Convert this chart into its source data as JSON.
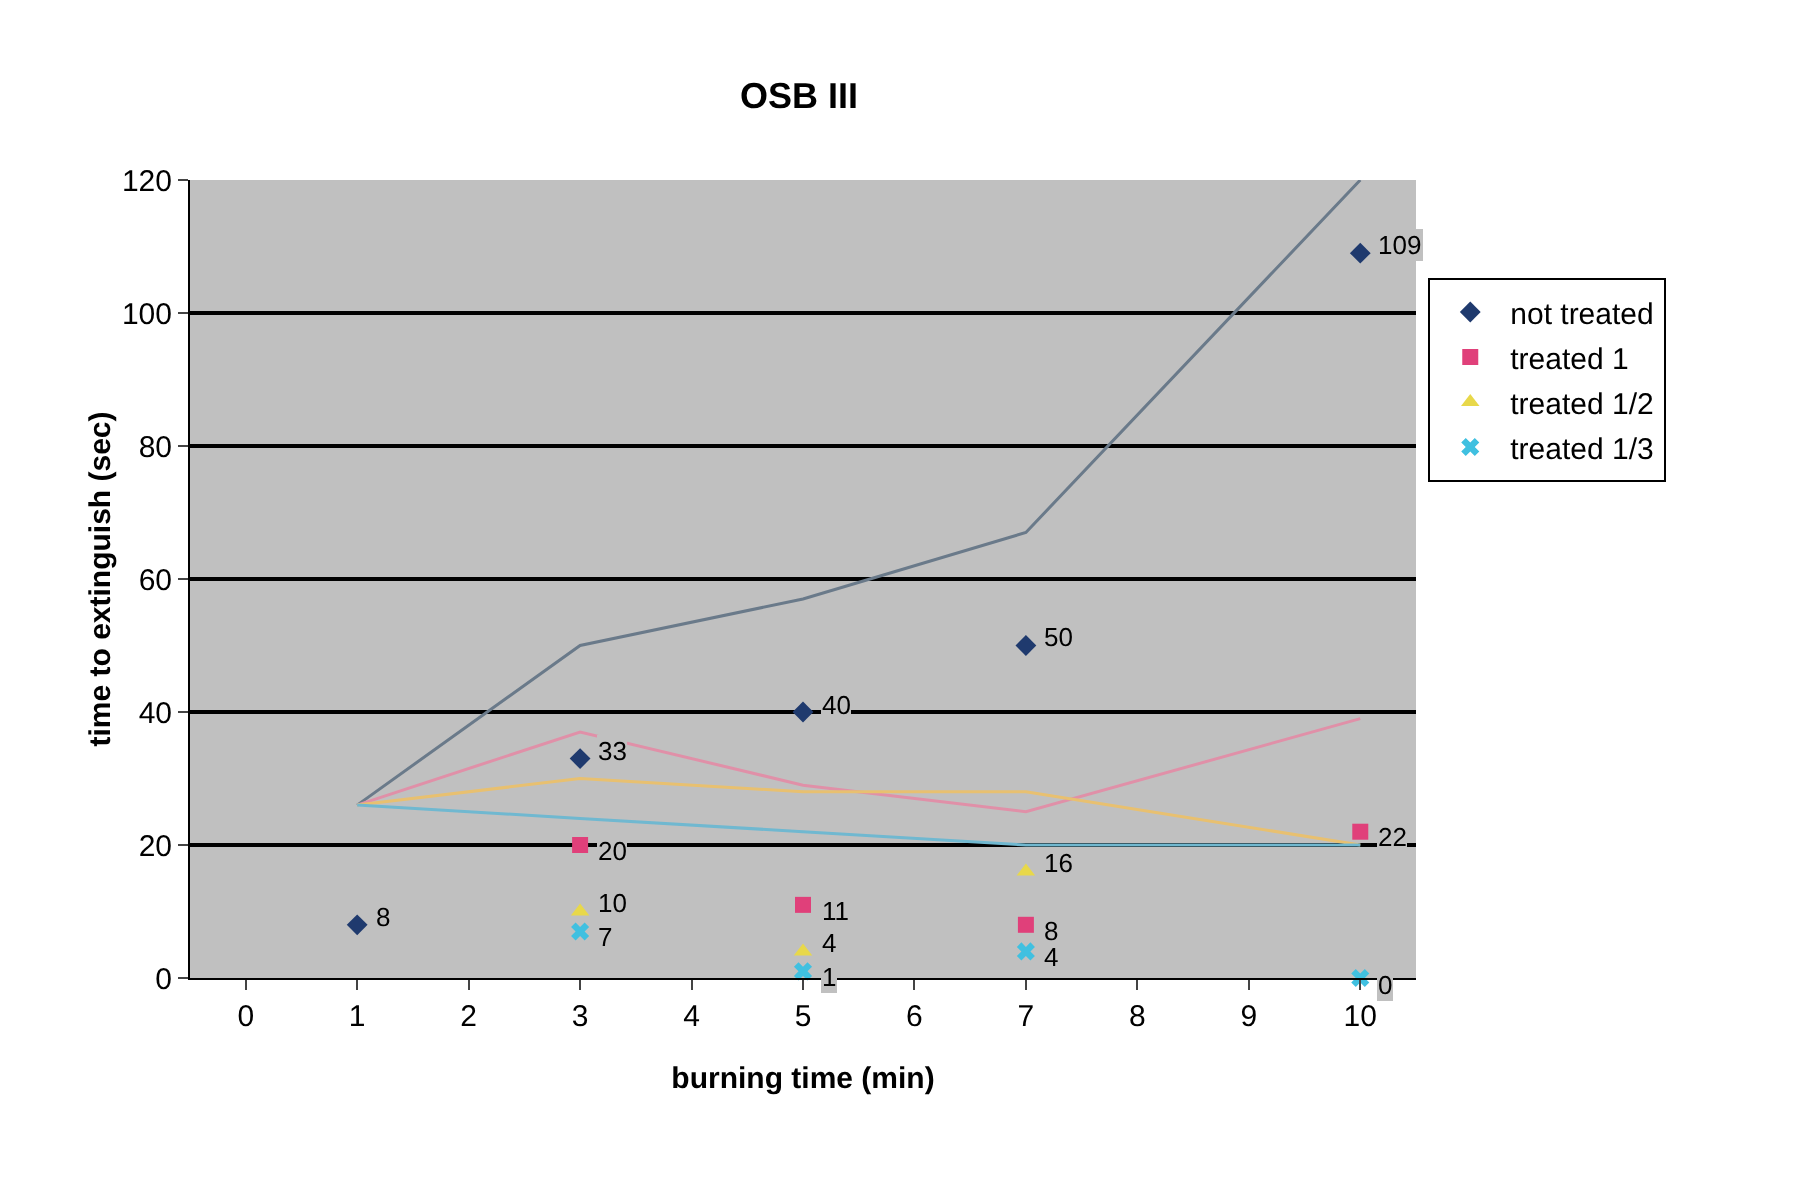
{
  "chart_data": {
    "type": "scatter",
    "title": "OSB III",
    "xlabel": "burning time (min)",
    "ylabel": "time to extinguish (sec)",
    "categories": [
      "0",
      "1",
      "2",
      "3",
      "4",
      "5",
      "6",
      "7",
      "8",
      "9",
      "10"
    ],
    "series": [
      {
        "name": "not treated",
        "color": "#1f3a6e",
        "marker": "diamond",
        "values": [
          null,
          8,
          null,
          33,
          null,
          40,
          null,
          50,
          null,
          null,
          109
        ],
        "value_labels": [
          null,
          "8",
          null,
          "33",
          null,
          "40",
          null,
          "50",
          null,
          null,
          "109"
        ]
      },
      {
        "name": "treated 1",
        "color": "#e0407a",
        "marker": "square",
        "values": [
          null,
          null,
          null,
          20,
          null,
          11,
          null,
          8,
          null,
          null,
          22
        ],
        "value_labels": [
          null,
          null,
          null,
          "20",
          null,
          "11",
          null,
          "8",
          null,
          null,
          "22"
        ]
      },
      {
        "name": "treated 1/2",
        "color": "#e8d84a",
        "marker": "triangle",
        "values": [
          null,
          null,
          null,
          10,
          null,
          4,
          null,
          16,
          null,
          null,
          null
        ],
        "value_labels": [
          null,
          null,
          null,
          "10",
          null,
          "4",
          null,
          "16",
          null,
          null,
          null
        ]
      },
      {
        "name": "treated 1/3",
        "color": "#40c0e0",
        "marker": "cross",
        "values": [
          null,
          null,
          null,
          7,
          null,
          1,
          null,
          4,
          null,
          null,
          0
        ],
        "value_labels": [
          null,
          null,
          null,
          "7",
          null,
          "1",
          null,
          "4",
          null,
          null,
          "0"
        ]
      },
      {
        "type": "line",
        "color": "#6a7a8a",
        "values": [
          null,
          26,
          null,
          50,
          null,
          57,
          null,
          67,
          null,
          null,
          120
        ]
      },
      {
        "type": "line",
        "color": "#e090a8",
        "values": [
          null,
          26,
          null,
          37,
          null,
          29,
          null,
          25,
          null,
          null,
          39
        ]
      },
      {
        "type": "line",
        "color": "#e8c070",
        "values": [
          null,
          26,
          null,
          30,
          null,
          28,
          null,
          28,
          null,
          null,
          20
        ]
      },
      {
        "type": "line",
        "color": "#70b8d0",
        "values": [
          null,
          26,
          null,
          24,
          null,
          22,
          null,
          20,
          null,
          null,
          20
        ]
      }
    ],
    "ylim": [
      0,
      120
    ],
    "yticks": [
      0,
      20,
      40,
      60,
      80,
      100,
      120
    ],
    "grid": "y",
    "legend": "right"
  }
}
